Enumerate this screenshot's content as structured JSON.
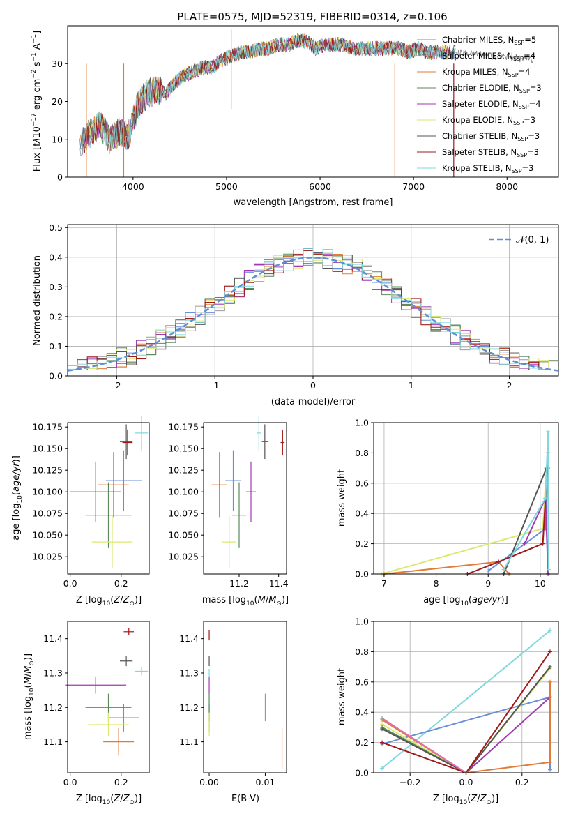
{
  "title": "PLATE=0575, MJD=52319, FIBERID=0314, z=0.106",
  "colors": {
    "Chabrier MILES": "#6a8fd6",
    "Salpeter MILES": "#9a9a9a",
    "Kroupa MILES": "#e07b39",
    "Chabrier ELODIE": "#5a8a5a",
    "Salpeter ELODIE": "#a03ab0",
    "Kroupa ELODIE": "#dde870",
    "Chabrier STELIB": "#555555",
    "Salpeter STELIB": "#a01818",
    "Kroupa STELIB": "#80d8dc"
  },
  "chart_data": [
    {
      "type": "line",
      "xlabel": "wavelength [Angstrom, rest frame]",
      "ylabel": "Flux [f_λ 10^-17 erg cm^-2 s^-1 A^-1]",
      "xlim": [
        3300,
        8550
      ],
      "ylim": [
        0,
        40
      ],
      "xticks": [
        "4000",
        "5000",
        "6000",
        "7000",
        "8000"
      ],
      "yticks": [
        "0",
        "10",
        "20",
        "30"
      ],
      "legend_loc": "upper right",
      "legend": [
        {
          "name": "Chabrier MILES",
          "nssp": "5"
        },
        {
          "name": "Salpeter MILES",
          "nssp": "4"
        },
        {
          "name": "Kroupa MILES",
          "nssp": "4"
        },
        {
          "name": "Chabrier ELODIE",
          "nssp": "3"
        },
        {
          "name": "Salpeter ELODIE",
          "nssp": "4"
        },
        {
          "name": "Kroupa ELODIE",
          "nssp": "3"
        },
        {
          "name": "Chabrier STELIB",
          "nssp": "3"
        },
        {
          "name": "Salpeter STELIB",
          "nssp": "3"
        },
        {
          "name": "Kroupa STELIB",
          "nssp": "3"
        }
      ],
      "data_x": [
        3450,
        3550,
        3650,
        3750,
        3850,
        3950,
        4050,
        4150,
        4250,
        4350,
        4450,
        4550,
        4650,
        4750,
        4850,
        4950,
        5050,
        5150,
        5250,
        5350,
        5450,
        5550,
        5650,
        5750,
        5850,
        5950,
        6050,
        6150,
        6250,
        6350,
        6450,
        6550,
        6650,
        6750,
        6850,
        6950,
        7050,
        7150,
        7250,
        7350,
        7450
      ],
      "data_y": [
        9,
        12,
        14,
        10,
        12,
        11,
        19,
        22,
        23,
        22,
        25,
        27,
        28,
        29,
        29,
        31,
        32,
        33,
        33,
        34,
        34,
        35,
        35,
        36,
        36,
        34,
        35,
        35,
        35,
        34,
        34,
        34,
        34,
        34,
        34,
        33,
        34,
        33,
        33,
        33,
        33
      ],
      "grey_tail_x": [
        7450,
        7600,
        7750,
        7900,
        8050,
        8200,
        8300
      ],
      "grey_tail_y": [
        33,
        32,
        33,
        32,
        32,
        31,
        31
      ]
    },
    {
      "type": "bar",
      "xlabel": "(data-model)/error",
      "ylabel": "Normed distribution",
      "xlim": [
        -2.5,
        2.5
      ],
      "ylim": [
        0,
        0.51
      ],
      "xticks": [
        "-2",
        "-1",
        "0",
        "1",
        "2"
      ],
      "yticks": [
        "0.0",
        "0.1",
        "0.2",
        "0.3",
        "0.4",
        "0.5"
      ],
      "grid": true,
      "legend": "𝒩(0, 1)",
      "legend_loc": "upper right",
      "bin_edges_start": -2.5,
      "bin_width": 0.1,
      "bins": 50
    },
    {
      "type": "scatter",
      "xlabel": "Z [log10(Z/Z⊙)]",
      "ylabel": "age  [log10(age/yr)]",
      "xlim": [
        -0.01,
        0.31
      ],
      "ylim": [
        10.005,
        10.18
      ],
      "xticks": [
        "0.0",
        "0.2"
      ],
      "yticks": [
        "10.025",
        "10.050",
        "10.075",
        "10.100",
        "10.125",
        "10.150",
        "10.175"
      ],
      "points": [
        {
          "s": "Chabrier MILES",
          "x": 0.21,
          "y": 10.113,
          "xe": 0.07,
          "ye": 0.035
        },
        {
          "s": "Kroupa MILES",
          "x": 0.17,
          "y": 10.108,
          "xe": 0.06,
          "ye": 0.038
        },
        {
          "s": "Chabrier ELODIE",
          "x": 0.15,
          "y": 10.073,
          "xe": 0.09,
          "ye": 0.038
        },
        {
          "s": "Salpeter ELODIE",
          "x": 0.1,
          "y": 10.1,
          "xe": 0.1,
          "ye": 0.035
        },
        {
          "s": "Kroupa ELODIE",
          "x": 0.165,
          "y": 10.042,
          "xe": 0.08,
          "ye": 0.03
        },
        {
          "s": "Chabrier STELIB",
          "x": 0.22,
          "y": 10.158,
          "xe": 0.025,
          "ye": 0.02
        },
        {
          "s": "Salpeter STELIB",
          "x": 0.225,
          "y": 10.157,
          "xe": 0.02,
          "ye": 0.015
        },
        {
          "s": "Kroupa STELIB",
          "x": 0.28,
          "y": 10.168,
          "xe": 0.025,
          "ye": 0.02
        }
      ]
    },
    {
      "type": "scatter",
      "xlabel": "mass [log10(M/M⊙)]",
      "ylabel": "",
      "xlim": [
        11.02,
        11.44
      ],
      "ylim": [
        10.005,
        10.18
      ],
      "xticks": [
        "11.2",
        "11.4"
      ],
      "yticks": [
        "10.025",
        "10.050",
        "10.075",
        "10.100",
        "10.125",
        "10.150",
        "10.175"
      ],
      "points": [
        {
          "s": "Chabrier MILES",
          "x": 11.17,
          "y": 10.113,
          "xe": 0.04,
          "ye": 0.035
        },
        {
          "s": "Kroupa MILES",
          "x": 11.1,
          "y": 10.108,
          "xe": 0.04,
          "ye": 0.038
        },
        {
          "s": "Chabrier ELODIE",
          "x": 11.2,
          "y": 10.073,
          "xe": 0.035,
          "ye": 0.038
        },
        {
          "s": "Salpeter ELODIE",
          "x": 11.26,
          "y": 10.1,
          "xe": 0.025,
          "ye": 0.035
        },
        {
          "s": "Kroupa ELODIE",
          "x": 11.15,
          "y": 10.042,
          "xe": 0.035,
          "ye": 0.03
        },
        {
          "s": "Chabrier STELIB",
          "x": 11.33,
          "y": 10.158,
          "xe": 0.015,
          "ye": 0.02
        },
        {
          "s": "Salpeter STELIB",
          "x": 11.42,
          "y": 10.157,
          "xe": 0.01,
          "ye": 0.015
        },
        {
          "s": "Kroupa STELIB",
          "x": 11.3,
          "y": 10.168,
          "xe": 0.012,
          "ye": 0.02
        }
      ]
    },
    {
      "type": "line",
      "xlabel": "age  [log10(age/yr)]",
      "ylabel": "mass weight",
      "xlim": [
        6.8,
        10.35
      ],
      "ylim": [
        0,
        1
      ],
      "xticks": [
        "7",
        "8",
        "9",
        "10"
      ],
      "yticks": [
        "0.0",
        "0.2",
        "0.4",
        "0.6",
        "0.8",
        "1.0"
      ],
      "grid": true
    },
    {
      "type": "scatter",
      "xlabel": "Z [log10(Z/Z⊙)]",
      "ylabel": "mass [log10(M/M⊙)]",
      "xlim": [
        -0.01,
        0.31
      ],
      "ylim": [
        11.01,
        11.45
      ],
      "xticks": [
        "0.0",
        "0.2"
      ],
      "yticks": [
        "11.1",
        "11.2",
        "11.3",
        "11.4"
      ],
      "points": [
        {
          "s": "Chabrier MILES",
          "x": 0.21,
          "y": 11.17,
          "xe": 0.06,
          "ye": 0.04
        },
        {
          "s": "Kroupa MILES",
          "x": 0.19,
          "y": 11.1,
          "xe": 0.06,
          "ye": 0.04
        },
        {
          "s": "Chabrier ELODIE",
          "x": 0.15,
          "y": 11.2,
          "xe": 0.09,
          "ye": 0.04
        },
        {
          "s": "Salpeter ELODIE",
          "x": 0.1,
          "y": 11.265,
          "xe": 0.12,
          "ye": 0.025
        },
        {
          "s": "Kroupa ELODIE",
          "x": 0.15,
          "y": 11.15,
          "xe": 0.08,
          "ye": 0.035
        },
        {
          "s": "Chabrier STELIB",
          "x": 0.22,
          "y": 11.335,
          "xe": 0.025,
          "ye": 0.015
        },
        {
          "s": "Salpeter STELIB",
          "x": 0.23,
          "y": 11.42,
          "xe": 0.02,
          "ye": 0.01
        },
        {
          "s": "Kroupa STELIB",
          "x": 0.28,
          "y": 11.305,
          "xe": 0.025,
          "ye": 0.012
        }
      ]
    },
    {
      "type": "scatter",
      "xlabel": "E(B-V)",
      "ylabel": "",
      "xlim": [
        -0.001,
        0.0138
      ],
      "ylim": [
        11.01,
        11.45
      ],
      "xticks": [
        "0.00",
        "0.01"
      ],
      "yticks": [
        "11.1",
        "11.2",
        "11.3",
        "11.4"
      ],
      "points": [
        {
          "s": "Chabrier MILES",
          "x": 0.0,
          "y": 11.17,
          "ye": 0.04
        },
        {
          "s": "Kroupa MILES",
          "x": 0.013,
          "y": 11.08,
          "ye": 0.06
        },
        {
          "s": "Chabrier ELODIE",
          "x": 0.0,
          "y": 11.2,
          "ye": 0.04
        },
        {
          "s": "Salpeter ELODIE",
          "x": 0.0,
          "y": 11.265,
          "ye": 0.025
        },
        {
          "s": "Kroupa ELODIE",
          "x": 0.0,
          "y": 11.15,
          "ye": 0.035
        },
        {
          "s": "Chabrier STELIB",
          "x": 0.0,
          "y": 11.335,
          "ye": 0.015
        },
        {
          "s": "Salpeter STELIB",
          "x": 0.0,
          "y": 11.41,
          "ye": 0.015
        },
        {
          "s": "Kroupa STELIB",
          "x": 0.0,
          "y": 11.3,
          "ye": 0.012
        },
        {
          "s": "Salpeter MILES",
          "x": 0.01,
          "y": 11.2,
          "ye": 0.04
        }
      ]
    },
    {
      "type": "line",
      "xlabel": "Z [log10(Z/Z⊙)]",
      "ylabel": "mass weight",
      "xlim": [
        -0.33,
        0.33
      ],
      "ylim": [
        0,
        1
      ],
      "xticks": [
        "−0.2",
        "0.0",
        "0.2"
      ],
      "yticks": [
        "0.0",
        "0.2",
        "0.4",
        "0.6",
        "0.8",
        "1.0"
      ],
      "grid": true
    }
  ]
}
